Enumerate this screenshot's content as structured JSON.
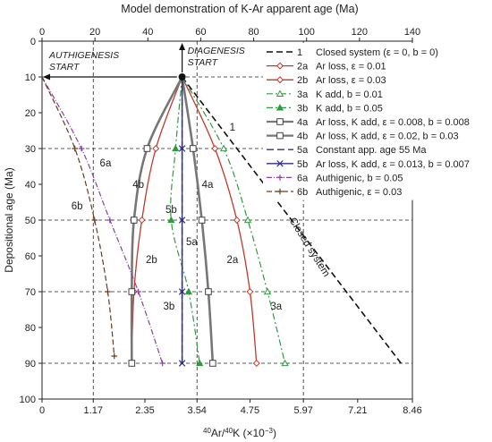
{
  "chart_data": {
    "type": "line",
    "title": "Model demonstration of K-Ar apparent age (Ma)",
    "xlabel_html": [
      "40",
      "Ar/",
      "40",
      "K  (×10",
      "−3",
      ")"
    ],
    "ylabel": "Depositional age (Ma)",
    "x_ticks": [
      0,
      1.17,
      2.35,
      3.54,
      4.75,
      5.97,
      7.21,
      8.46
    ],
    "x_tick_labels": [
      "0",
      "1.17",
      "2.35",
      "3.54",
      "4.75",
      "5.97",
      "7.21",
      "8.46"
    ],
    "x_ratio_range": [
      0,
      8.46
    ],
    "top_ticks": [
      0,
      20,
      40,
      60,
      80,
      100,
      120,
      140
    ],
    "y_ticks": [
      0,
      10,
      20,
      30,
      40,
      50,
      60,
      70,
      80,
      90,
      100
    ],
    "ylim": [
      0,
      100
    ],
    "y_inverted": true,
    "grid_dashed_ratios": [
      1.17,
      3.54,
      5.97
    ],
    "grid_dashed_depths": [
      10,
      30,
      50,
      70,
      90
    ],
    "annotations": {
      "authigenesis": [
        "AUTHIGENESIS",
        "START"
      ],
      "diagenesis": [
        "DIAGENESIS",
        "START"
      ],
      "closed_system": "Closed system"
    },
    "series": [
      {
        "id": "1",
        "name": "Closed system (ε = 0, b = 0)",
        "color": "#111111",
        "dash": "7,4",
        "marker": "none",
        "width": 1.6,
        "points": [
          [
            3.2,
            10
          ],
          [
            8.2,
            90
          ]
        ],
        "curve_label": "1",
        "curve_label_pos": [
          4.35,
          25
        ]
      },
      {
        "id": "2a",
        "name": "Ar loss, ε = 0.01",
        "color": "#c0392b",
        "dash": "",
        "marker": "diamond",
        "width": 1.3,
        "points": [
          [
            3.2,
            10
          ],
          [
            3.95,
            30
          ],
          [
            4.45,
            50
          ],
          [
            4.75,
            70
          ],
          [
            4.9,
            90
          ]
        ],
        "curve_label": "2a",
        "curve_label_pos": [
          4.35,
          62
        ]
      },
      {
        "id": "2b",
        "name": "Ar loss, ε = 0.03",
        "color": "#c0392b",
        "dash": "",
        "marker": "diamond",
        "width": 1.3,
        "points": [
          [
            3.2,
            10
          ],
          [
            2.6,
            30
          ],
          [
            2.28,
            50
          ],
          [
            2.1,
            70
          ],
          [
            2.05,
            90
          ]
        ],
        "curve_label": "2b",
        "curve_label_pos": [
          2.5,
          62
        ]
      },
      {
        "id": "3a",
        "name": "K add, b = 0.01",
        "color": "#2e9b3e",
        "dash": "7,3,2,3",
        "marker": "triangle-open",
        "width": 1.2,
        "points": [
          [
            3.2,
            10
          ],
          [
            4.15,
            30
          ],
          [
            4.7,
            50
          ],
          [
            5.15,
            70
          ],
          [
            5.55,
            90
          ]
        ],
        "curve_label": "3a",
        "curve_label_pos": [
          5.35,
          75
        ]
      },
      {
        "id": "3b",
        "name": "K add, b = 0.05",
        "color": "#2e9b3e",
        "dash": "7,3,2,3",
        "marker": "triangle",
        "width": 1.2,
        "points": [
          [
            3.2,
            10
          ],
          [
            3.05,
            30
          ],
          [
            2.95,
            50
          ],
          [
            3.35,
            70
          ],
          [
            3.6,
            90
          ]
        ],
        "curve_label": "3b",
        "curve_label_pos": [
          2.9,
          75
        ]
      },
      {
        "id": "4a",
        "name": "Ar loss, K add, ε = 0.008, b = 0.008",
        "color": "#777777",
        "dash": "",
        "marker": "square-open",
        "width": 2.6,
        "points": [
          [
            3.2,
            10
          ],
          [
            3.45,
            30
          ],
          [
            3.65,
            50
          ],
          [
            3.8,
            70
          ],
          [
            3.9,
            90
          ]
        ],
        "curve_label": "4a",
        "curve_label_pos": [
          3.78,
          41
        ]
      },
      {
        "id": "4b",
        "name": "Ar loss, K add, ε = 0.02, b = 0.03",
        "color": "#777777",
        "dash": "",
        "marker": "square-open",
        "width": 2.6,
        "points": [
          [
            3.2,
            10
          ],
          [
            2.4,
            30
          ],
          [
            2.1,
            50
          ],
          [
            2.05,
            70
          ],
          [
            2.05,
            90
          ]
        ],
        "curve_label": "4b",
        "curve_label_pos": [
          2.2,
          41
        ]
      },
      {
        "id": "5a",
        "name": "Constant app. age 55 Ma",
        "color": "#2b2e8c",
        "dash": "8,4",
        "marker": "none",
        "width": 1.4,
        "points": [
          [
            3.2,
            10
          ],
          [
            3.2,
            90
          ]
        ],
        "curve_label": "5a",
        "curve_label_pos": [
          3.42,
          57
        ]
      },
      {
        "id": "5b",
        "name": "Ar loss, K add, ε = 0.013, b = 0.007",
        "color": "#2b2e8c",
        "dash": "",
        "marker": "x",
        "width": 1.4,
        "points": [
          [
            3.2,
            10
          ],
          [
            3.2,
            30
          ],
          [
            3.2,
            50
          ],
          [
            3.2,
            70
          ],
          [
            3.2,
            90
          ]
        ],
        "curve_label": "5b",
        "curve_label_pos": [
          2.95,
          48
        ]
      },
      {
        "id": "6a",
        "name": "Authigenic, b = 0.05",
        "color": "#8e3fa5",
        "dash": "6,2,1,2",
        "marker": "plus",
        "width": 1.2,
        "points": [
          [
            0,
            10
          ],
          [
            0.9,
            30
          ],
          [
            1.55,
            50
          ],
          [
            2.2,
            70
          ],
          [
            2.75,
            90
          ]
        ],
        "curve_label": "6a",
        "curve_label_pos": [
          1.45,
          35
        ]
      },
      {
        "id": "6b",
        "name": "Authigenic, ε = 0.03",
        "color": "#6b3a1f",
        "dash": "6,3",
        "marker": "plus",
        "width": 1.2,
        "points": [
          [
            0,
            10
          ],
          [
            0.75,
            30
          ],
          [
            1.2,
            50
          ],
          [
            1.5,
            70
          ],
          [
            1.65,
            88
          ]
        ],
        "curve_label": "6b",
        "curve_label_pos": [
          0.8,
          47
        ]
      }
    ]
  }
}
